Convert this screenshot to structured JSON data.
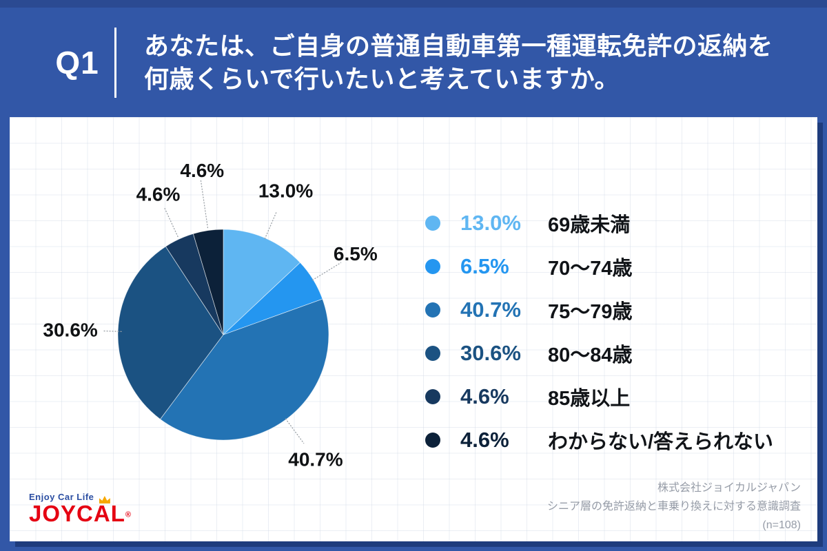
{
  "header": {
    "question_number": "Q1",
    "question_line1": "あなたは、ご自身の普通自動車第一種運転免許の返納を",
    "question_line2": "何歳くらいで行いたいと考えていますか。"
  },
  "chart_data": {
    "type": "pie",
    "title": "あなたは、ご自身の普通自動車第一種運転免許の返納を何歳くらいで行いたいと考えていますか。",
    "categories": [
      "69歳未満",
      "70〜74歳",
      "75〜79歳",
      "80〜84歳",
      "85歳以上",
      "わからない/答えられない"
    ],
    "values": [
      13.0,
      6.5,
      40.7,
      30.6,
      4.6,
      4.6
    ],
    "pct_labels": [
      "13.0%",
      "6.5%",
      "40.7%",
      "30.6%",
      "4.6%",
      "4.6%"
    ],
    "colors": [
      "#5FB6F2",
      "#2496F0",
      "#2373B4",
      "#1B5282",
      "#17395F",
      "#0C2139"
    ],
    "start_angle": "12-oclock",
    "direction": "clockwise",
    "legend_position": "right",
    "slice_border_color": "#FFFFFF"
  },
  "footer": {
    "logo_tagline": "Enjoy Car Life",
    "logo_brand": "JOYCAL",
    "logo_registered": "®",
    "source_lines": [
      "株式会社ジョイカルジャパン",
      "シニア層の免許返納と車乗り換えに対する意識調査",
      "(n=108)"
    ]
  }
}
